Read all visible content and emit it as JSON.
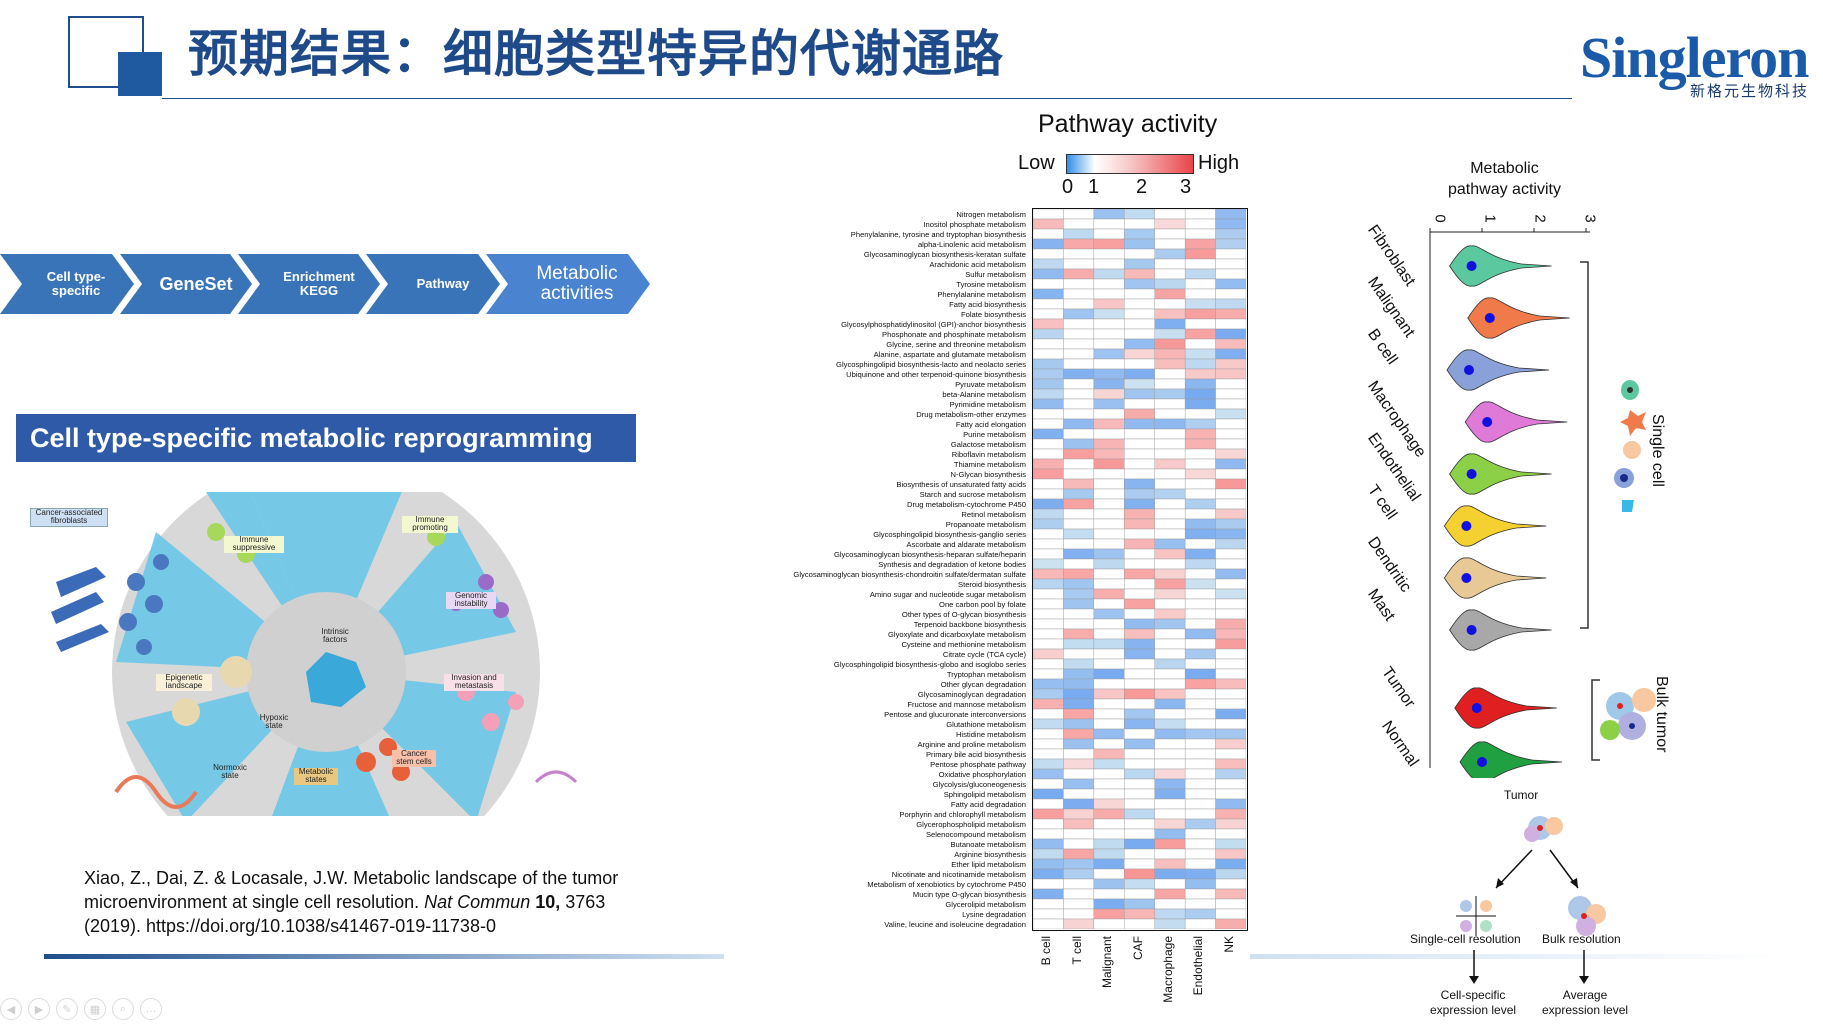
{
  "slide": {
    "title": "预期结果：细胞类型特异的代谢通路",
    "brand": "Singleron",
    "brand_sub": "新格元生物科技"
  },
  "workflow": {
    "steps": [
      {
        "label": "Cell type-\nspecific"
      },
      {
        "label": "GeneSet"
      },
      {
        "label": "Enrichment\nKEGG"
      },
      {
        "label": "Pathway"
      },
      {
        "label": "Metabolic\nactivities"
      }
    ]
  },
  "section": {
    "banner": "Cell type-specific metabolic reprogramming"
  },
  "illustration": {
    "labels": {
      "caf": "Cancer-associated\nfibroblasts",
      "immune_suppressive": "Immune\nsuppressive",
      "immune_promoting": "Immune\npromoting",
      "genomic_instability": "Genomic\ninstability",
      "intrinsic_factors": "Intrinsic\nfactors",
      "epigenetic_landscape": "Epigenetic\nlandscape",
      "hypoxic_state": "Hypoxic\nstate",
      "invasion_metastasis": "Invasion and\nmetastasis",
      "normoxic_state": "Normoxic\nstate",
      "metabolic_states": "Metabolic\nstates",
      "cancer_stem_cells": "Cancer\nstem cells"
    }
  },
  "citation": {
    "authors": "Xiao, Z., Dai, Z. & Locasale, J.W. Metabolic landscape of the tumor microenvironment at single cell resolution.",
    "journal": "Nat Commun",
    "volume": "10,",
    "rest": "3763 (2019). https://doi.org/10.1038/s41467-019-11738-0"
  },
  "heatmap": {
    "title": "Pathway activity",
    "legend_low": "Low",
    "legend_high": "High",
    "legend_ticks": [
      "0",
      "1",
      "2",
      "3"
    ],
    "legend_colors": {
      "low": "#2f8ee8",
      "mid": "#ffffff",
      "high": "#e8454a"
    },
    "columns": [
      "B cell",
      "T cell",
      "Malignant",
      "CAF",
      "Macrophage",
      "Endothelial",
      "NK"
    ],
    "rows": [
      "Nitrogen metabolism",
      "Inositol phosphate metabolism",
      "Phenylalanine, tyrosine and tryptophan biosynthesis",
      "alpha-Linolenic acid metabolism",
      "Glycosaminoglycan biosynthesis-keratan sulfate",
      "Arachidonic acid metabolism",
      "Sulfur metabolism",
      "Tyrosine metabolism",
      "Phenylalanine metabolism",
      "Fatty acid biosynthesis",
      "Folate biosynthesis",
      "Glycosylphosphatidylinositol (GPI)-anchor biosynthesis",
      "Phosphonate and phosphinate metabolism",
      "Glycine, serine and threonine metabolism",
      "Alanine, aspartate and glutamate metabolism",
      "Glycosphingolipid biosynthesis-lacto and neolacto series",
      "Ubiquinone and other terpenoid-quinone biosynthesis",
      "Pyruvate metabolism",
      "beta-Alanine metabolism",
      "Pyrimidine metabolism",
      "Drug metabolism-other enzymes",
      "Fatty acid elongation",
      "Purine metabolism",
      "Galactose metabolism",
      "Riboflavin metabolism",
      "Thiamine metabolism",
      "N-Glycan biosynthesis",
      "Biosynthesis of unsaturated fatty acids",
      "Starch and sucrose metabolism",
      "Drug metabolism-cytochrome P450",
      "Retinol metabolism",
      "Propanoate metabolism",
      "Glycosphingolipid biosynthesis-ganglio series",
      "Ascorbate and aldarate metabolism",
      "Glycosaminoglycan biosynthesis-heparan sulfate/heparin",
      "Synthesis and degradation of ketone bodies",
      "Glycosaminoglycan biosynthesis-chondroitin sulfate/dermatan sulfate",
      "Steroid biosynthesis",
      "Amino sugar and nucleotide sugar metabolism",
      "One carbon pool by folate",
      "Other types of O-glycan biosynthesis",
      "Terpenoid backbone biosynthesis",
      "Glyoxylate and dicarboxylate metabolism",
      "Cysteine and methionine metabolism",
      "Citrate cycle (TCA cycle)",
      "Glycosphingolipid biosynthesis-globo and isoglobo series",
      "Tryptophan metabolism",
      "Other glycan degradation",
      "Glycosaminoglycan degradation",
      "Fructose and mannose metabolism",
      "Pentose and glucuronate interconversions",
      "Glutathione metabolism",
      "Histidine metabolism",
      "Arginine and proline metabolism",
      "Primary bile acid biosynthesis",
      "Pentose phosphate pathway",
      "Oxidative phosphorylation",
      "Glycolysis/gluconeogenesis",
      "Sphingolipid metabolism",
      "Fatty acid degradation",
      "Porphyrin and chlorophyll metabolism",
      "Glycerophospholipid metabolism",
      "Selenocompound metabolism",
      "Butanoate metabolism",
      "Arginine biosynthesis",
      "Ether lipid metabolism",
      "Nicotinate and nicotinamide metabolism",
      "Metabolism of xenobiotics by cytochrome P450",
      "Mucin type O-glycan biosynthesis",
      "Glycerolipid metabolism",
      "Lysine degradation",
      "Valine, leucine and isoleucine degradation"
    ]
  },
  "violin": {
    "axis_title": "Metabolic\npathway activity",
    "axis_ticks": [
      "0",
      "1",
      "2",
      "3"
    ],
    "single_cell_groups": [
      {
        "name": "Fibroblast",
        "color": "#5cc8a0"
      },
      {
        "name": "Malignant",
        "color": "#f07a4a"
      },
      {
        "name": "B cell",
        "color": "#8aa0d8"
      },
      {
        "name": "Macrophage",
        "color": "#e07ad8"
      },
      {
        "name": "Endothelial",
        "color": "#8cd048"
      },
      {
        "name": "T cell",
        "color": "#f4d030"
      },
      {
        "name": "Dendritic",
        "color": "#e8c894"
      },
      {
        "name": "Mast",
        "color": "#a8a8a8"
      }
    ],
    "bulk_groups": [
      {
        "name": "Tumor",
        "color": "#e02020"
      },
      {
        "name": "Normal",
        "color": "#20a040"
      }
    ],
    "single_cell_label": "Single cell",
    "bulk_label": "Bulk tumor"
  },
  "schematic": {
    "tumor": "Tumor",
    "single_cell_resolution": "Single-cell resolution",
    "bulk_resolution": "Bulk resolution",
    "cell_specific": "Cell-specific\nexpression level",
    "average": "Average\nexpression level"
  }
}
